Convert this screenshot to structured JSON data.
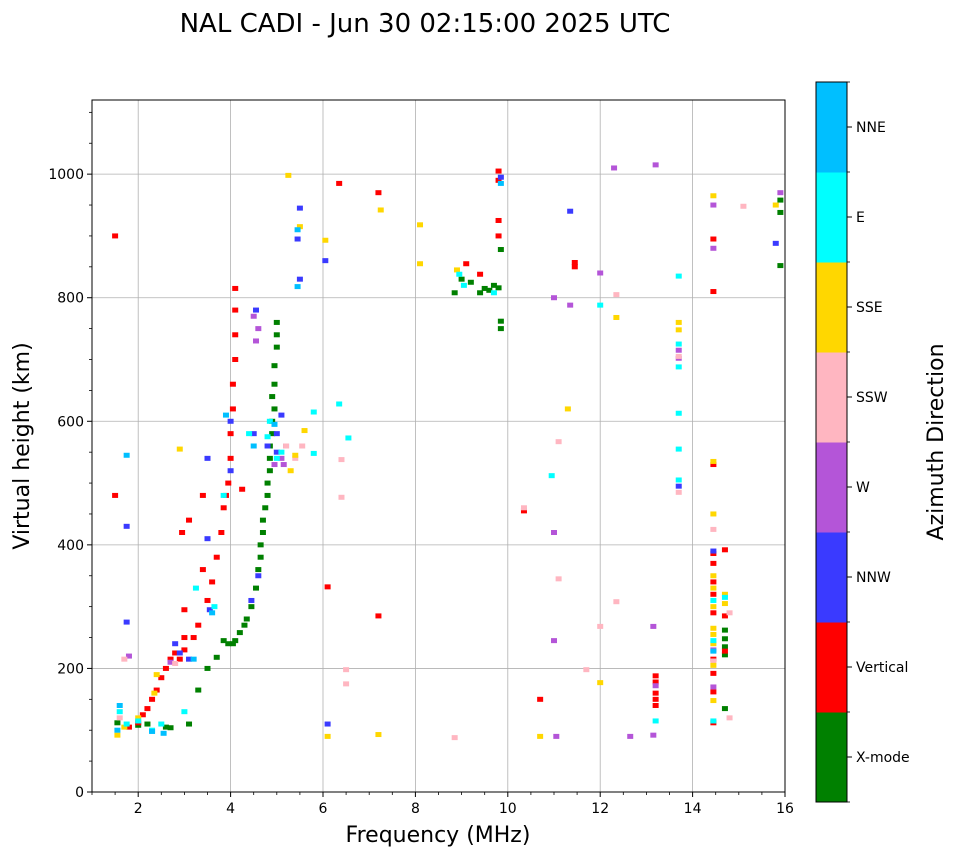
{
  "chart_data": {
    "type": "scatter",
    "title": "NAL CADI - Jun 30 02:15:00 2025 UTC",
    "xlabel": "Frequency (MHz)",
    "ylabel": "Virtual height (km)",
    "xlim": [
      1,
      16
    ],
    "ylim": [
      0,
      1120
    ],
    "xticks": [
      2,
      4,
      6,
      8,
      10,
      12,
      14,
      16
    ],
    "yticks": [
      0,
      200,
      400,
      600,
      800,
      1000
    ],
    "grid": true,
    "colorbar": {
      "label": "Azimuth Direction",
      "categories": [
        {
          "name": "X-mode",
          "color": "#008000"
        },
        {
          "name": "Vertical",
          "color": "#ff0000"
        },
        {
          "name": "NNW",
          "color": "#3a3aff"
        },
        {
          "name": "W",
          "color": "#b455d8"
        },
        {
          "name": "SSW",
          "color": "#ffb6c1"
        },
        {
          "name": "SSE",
          "color": "#ffd700"
        },
        {
          "name": "E",
          "color": "#00ffff"
        },
        {
          "name": "NNE",
          "color": "#00bfff"
        }
      ]
    },
    "series": [
      {
        "name": "X-mode",
        "points": [
          [
            1.55,
            112
          ],
          [
            2.0,
            108
          ],
          [
            2.2,
            110
          ],
          [
            2.6,
            105
          ],
          [
            2.7,
            104
          ],
          [
            3.1,
            110
          ],
          [
            3.3,
            165
          ],
          [
            3.5,
            200
          ],
          [
            3.7,
            218
          ],
          [
            3.85,
            245
          ],
          [
            3.95,
            240
          ],
          [
            4.05,
            240
          ],
          [
            4.1,
            245
          ],
          [
            4.2,
            258
          ],
          [
            4.3,
            270
          ],
          [
            4.35,
            280
          ],
          [
            4.45,
            300
          ],
          [
            4.55,
            330
          ],
          [
            4.6,
            360
          ],
          [
            4.65,
            380
          ],
          [
            4.65,
            400
          ],
          [
            4.7,
            420
          ],
          [
            4.7,
            440
          ],
          [
            4.75,
            460
          ],
          [
            4.8,
            480
          ],
          [
            4.8,
            500
          ],
          [
            4.85,
            520
          ],
          [
            4.85,
            540
          ],
          [
            4.85,
            560
          ],
          [
            4.9,
            580
          ],
          [
            4.9,
            600
          ],
          [
            4.95,
            620
          ],
          [
            4.9,
            640
          ],
          [
            4.95,
            660
          ],
          [
            4.95,
            690
          ],
          [
            5.0,
            720
          ],
          [
            5.0,
            740
          ],
          [
            5.0,
            760
          ],
          [
            8.85,
            808
          ],
          [
            9.0,
            830
          ],
          [
            9.2,
            825
          ],
          [
            9.4,
            808
          ],
          [
            9.5,
            815
          ],
          [
            9.6,
            812
          ],
          [
            9.7,
            820
          ],
          [
            9.8,
            816
          ],
          [
            9.85,
            750
          ],
          [
            9.85,
            762
          ],
          [
            9.85,
            878
          ],
          [
            14.7,
            135
          ],
          [
            14.7,
            222
          ],
          [
            14.7,
            235
          ],
          [
            14.7,
            248
          ],
          [
            14.7,
            262
          ],
          [
            15.9,
            852
          ],
          [
            15.9,
            938
          ],
          [
            15.9,
            958
          ]
        ]
      },
      {
        "name": "Vertical",
        "points": [
          [
            1.5,
            480
          ],
          [
            1.5,
            900
          ],
          [
            1.8,
            105
          ],
          [
            2.0,
            112
          ],
          [
            2.1,
            125
          ],
          [
            2.2,
            135
          ],
          [
            2.3,
            150
          ],
          [
            2.4,
            165
          ],
          [
            2.5,
            185
          ],
          [
            2.6,
            200
          ],
          [
            2.7,
            215
          ],
          [
            2.8,
            225
          ],
          [
            2.9,
            215
          ],
          [
            3.0,
            230
          ],
          [
            3.0,
            250
          ],
          [
            3.0,
            295
          ],
          [
            2.95,
            420
          ],
          [
            3.1,
            440
          ],
          [
            3.2,
            250
          ],
          [
            3.3,
            270
          ],
          [
            3.4,
            360
          ],
          [
            3.4,
            480
          ],
          [
            3.5,
            310
          ],
          [
            3.6,
            340
          ],
          [
            3.7,
            380
          ],
          [
            3.8,
            420
          ],
          [
            3.85,
            460
          ],
          [
            3.9,
            480
          ],
          [
            3.95,
            500
          ],
          [
            4.0,
            540
          ],
          [
            4.0,
            580
          ],
          [
            4.05,
            620
          ],
          [
            4.05,
            660
          ],
          [
            4.1,
            700
          ],
          [
            4.1,
            740
          ],
          [
            4.1,
            780
          ],
          [
            4.1,
            815
          ],
          [
            4.25,
            490
          ],
          [
            6.1,
            332
          ],
          [
            6.35,
            985
          ],
          [
            7.2,
            970
          ],
          [
            7.2,
            285
          ],
          [
            9.1,
            855
          ],
          [
            9.4,
            838
          ],
          [
            9.8,
            900
          ],
          [
            9.8,
            925
          ],
          [
            9.8,
            990
          ],
          [
            9.8,
            1005
          ],
          [
            10.35,
            455
          ],
          [
            10.7,
            150
          ],
          [
            11.45,
            850
          ],
          [
            11.45,
            857
          ],
          [
            13.2,
            140
          ],
          [
            13.2,
            150
          ],
          [
            13.2,
            160
          ],
          [
            13.2,
            178
          ],
          [
            13.2,
            188
          ],
          [
            14.45,
            112
          ],
          [
            14.45,
            162
          ],
          [
            14.45,
            192
          ],
          [
            14.45,
            215
          ],
          [
            14.45,
            290
          ],
          [
            14.45,
            320
          ],
          [
            14.45,
            340
          ],
          [
            14.45,
            370
          ],
          [
            14.45,
            386
          ],
          [
            14.45,
            530
          ],
          [
            14.45,
            810
          ],
          [
            14.45,
            895
          ],
          [
            14.7,
            228
          ],
          [
            14.7,
            285
          ],
          [
            14.7,
            392
          ]
        ]
      },
      {
        "name": "NNW",
        "points": [
          [
            1.75,
            430
          ],
          [
            1.75,
            275
          ],
          [
            2.8,
            240
          ],
          [
            2.9,
            225
          ],
          [
            3.1,
            215
          ],
          [
            3.5,
            410
          ],
          [
            3.5,
            540
          ],
          [
            3.55,
            295
          ],
          [
            4.0,
            520
          ],
          [
            4.0,
            600
          ],
          [
            4.45,
            310
          ],
          [
            4.5,
            580
          ],
          [
            4.55,
            780
          ],
          [
            4.6,
            350
          ],
          [
            4.8,
            560
          ],
          [
            5.0,
            550
          ],
          [
            5.0,
            580
          ],
          [
            5.1,
            610
          ],
          [
            5.2,
            560
          ],
          [
            5.45,
            895
          ],
          [
            5.5,
            830
          ],
          [
            5.5,
            945
          ],
          [
            6.05,
            860
          ],
          [
            6.1,
            110
          ],
          [
            9.85,
            995
          ],
          [
            11.35,
            940
          ],
          [
            13.7,
            495
          ],
          [
            14.45,
            390
          ],
          [
            15.8,
            888
          ]
        ]
      },
      {
        "name": "W",
        "points": [
          [
            1.8,
            220
          ],
          [
            2.7,
            210
          ],
          [
            4.5,
            770
          ],
          [
            4.55,
            730
          ],
          [
            4.6,
            750
          ],
          [
            4.95,
            530
          ],
          [
            5.1,
            540
          ],
          [
            5.15,
            530
          ],
          [
            11.0,
            245
          ],
          [
            11.0,
            420
          ],
          [
            11.05,
            90
          ],
          [
            11.0,
            800
          ],
          [
            11.35,
            788
          ],
          [
            12.0,
            840
          ],
          [
            12.3,
            1010
          ],
          [
            12.65,
            90
          ],
          [
            13.15,
            92
          ],
          [
            13.15,
            268
          ],
          [
            13.2,
            1015
          ],
          [
            13.2,
            172
          ],
          [
            13.7,
            702
          ],
          [
            13.7,
            715
          ],
          [
            14.45,
            170
          ],
          [
            14.45,
            230
          ],
          [
            14.45,
            880
          ],
          [
            14.45,
            950
          ],
          [
            15.9,
            970
          ]
        ]
      },
      {
        "name": "SSW",
        "points": [
          [
            1.6,
            120
          ],
          [
            1.7,
            215
          ],
          [
            2.8,
            208
          ],
          [
            5.2,
            560
          ],
          [
            5.4,
            540
          ],
          [
            5.55,
            560
          ],
          [
            6.4,
            538
          ],
          [
            6.4,
            477
          ],
          [
            6.5,
            175
          ],
          [
            6.5,
            198
          ],
          [
            8.85,
            88
          ],
          [
            10.35,
            460
          ],
          [
            11.1,
            345
          ],
          [
            11.1,
            567
          ],
          [
            11.7,
            198
          ],
          [
            12.0,
            268
          ],
          [
            12.35,
            308
          ],
          [
            12.35,
            805
          ],
          [
            13.7,
            485
          ],
          [
            13.7,
            705
          ],
          [
            14.45,
            212
          ],
          [
            14.45,
            425
          ],
          [
            14.8,
            120
          ],
          [
            14.8,
            290
          ],
          [
            15.1,
            948
          ]
        ]
      },
      {
        "name": "SSE",
        "points": [
          [
            1.55,
            92
          ],
          [
            1.7,
            105
          ],
          [
            2.0,
            120
          ],
          [
            2.35,
            160
          ],
          [
            2.4,
            190
          ],
          [
            2.9,
            555
          ],
          [
            5.3,
            520
          ],
          [
            5.4,
            545
          ],
          [
            5.6,
            585
          ],
          [
            5.5,
            915
          ],
          [
            5.25,
            998
          ],
          [
            6.1,
            90
          ],
          [
            6.05,
            893
          ],
          [
            7.2,
            93
          ],
          [
            7.25,
            942
          ],
          [
            8.1,
            855
          ],
          [
            8.1,
            918
          ],
          [
            8.9,
            845
          ],
          [
            10.7,
            90
          ],
          [
            11.3,
            620
          ],
          [
            12.0,
            177
          ],
          [
            12.35,
            768
          ],
          [
            13.7,
            748
          ],
          [
            13.7,
            760
          ],
          [
            14.45,
            148
          ],
          [
            14.45,
            205
          ],
          [
            14.45,
            240
          ],
          [
            14.45,
            255
          ],
          [
            14.45,
            265
          ],
          [
            14.45,
            300
          ],
          [
            14.45,
            330
          ],
          [
            14.45,
            350
          ],
          [
            14.45,
            450
          ],
          [
            14.45,
            535
          ],
          [
            14.45,
            965
          ],
          [
            14.7,
            305
          ],
          [
            14.7,
            320
          ],
          [
            15.8,
            950
          ]
        ]
      },
      {
        "name": "E",
        "points": [
          [
            1.6,
            130
          ],
          [
            1.75,
            110
          ],
          [
            2.0,
            115
          ],
          [
            2.3,
            100
          ],
          [
            2.5,
            110
          ],
          [
            3.0,
            130
          ],
          [
            3.25,
            330
          ],
          [
            3.65,
            300
          ],
          [
            3.85,
            480
          ],
          [
            4.4,
            580
          ],
          [
            4.8,
            575
          ],
          [
            4.85,
            600
          ],
          [
            5.0,
            540
          ],
          [
            5.1,
            550
          ],
          [
            5.8,
            615
          ],
          [
            5.8,
            548
          ],
          [
            6.35,
            628
          ],
          [
            6.55,
            573
          ],
          [
            8.95,
            838
          ],
          [
            9.05,
            820
          ],
          [
            9.7,
            808
          ],
          [
            10.95,
            512
          ],
          [
            12.0,
            788
          ],
          [
            13.2,
            115
          ],
          [
            13.7,
            505
          ],
          [
            13.7,
            555
          ],
          [
            13.7,
            613
          ],
          [
            13.7,
            688
          ],
          [
            13.7,
            725
          ],
          [
            13.7,
            835
          ],
          [
            14.45,
            115
          ],
          [
            14.45,
            245
          ],
          [
            14.45,
            310
          ],
          [
            14.7,
            315
          ]
        ]
      },
      {
        "name": "NNE",
        "points": [
          [
            1.55,
            100
          ],
          [
            1.6,
            140
          ],
          [
            1.75,
            545
          ],
          [
            2.3,
            98
          ],
          [
            2.55,
            95
          ],
          [
            3.2,
            215
          ],
          [
            3.6,
            290
          ],
          [
            3.9,
            610
          ],
          [
            4.5,
            560
          ],
          [
            4.95,
            595
          ],
          [
            5.45,
            910
          ],
          [
            5.45,
            818
          ],
          [
            9.85,
            985
          ],
          [
            14.45,
            228
          ]
        ]
      }
    ]
  }
}
